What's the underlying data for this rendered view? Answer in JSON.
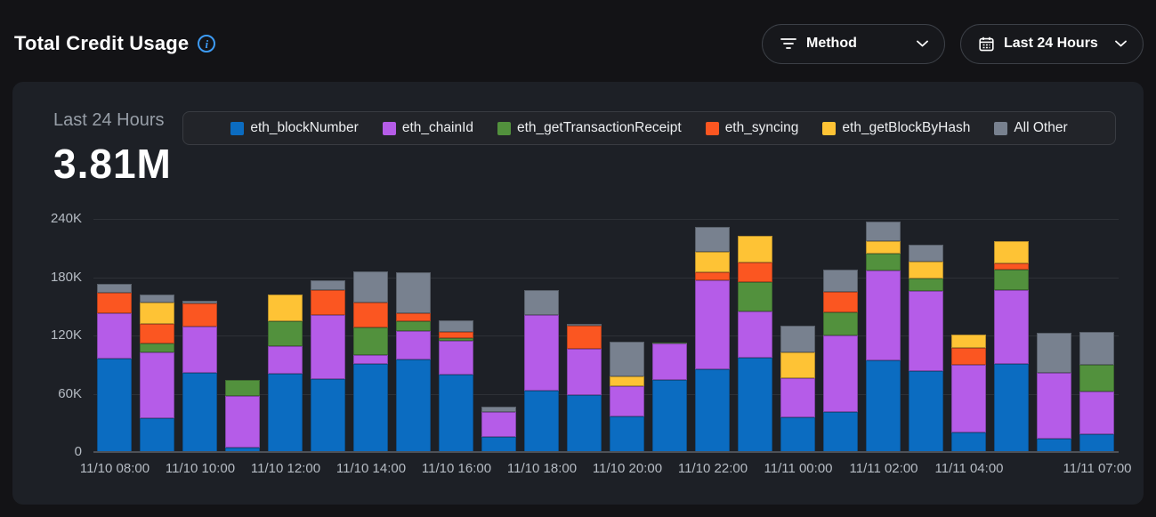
{
  "page": {
    "title": "Total Credit Usage"
  },
  "toolbar": {
    "method_filter_label": "Method",
    "time_range_label": "Last 24 Hours"
  },
  "panel": {
    "summary_label": "Last 24 Hours",
    "summary_value": "3.81M"
  },
  "icons": {
    "info": "info-icon",
    "filter": "filter-icon",
    "calendar": "calendar-icon",
    "chevron": "chevron-down-icon"
  },
  "colors": {
    "page_bg": "#131316",
    "card_bg": "#1d2026",
    "legend_bg": "#222429",
    "accent_blue": "#3d9bf5",
    "axis_text": "#b5bbc3",
    "muted_text": "#979ea7"
  },
  "chart_data": {
    "type": "bar",
    "stacked": true,
    "title": "Total Credit Usage",
    "unit": "thousands of credits",
    "ylim": [
      0,
      240
    ],
    "grid": true,
    "legend_position": "top",
    "yticks": [
      {
        "value": 0,
        "label": "0"
      },
      {
        "value": 60,
        "label": "60K"
      },
      {
        "value": 120,
        "label": "120K"
      },
      {
        "value": 180,
        "label": "180K"
      },
      {
        "value": 240,
        "label": "240K"
      }
    ],
    "categories": [
      "11/10 08:00",
      "11/10 09:00",
      "11/10 10:00",
      "11/10 11:00",
      "11/10 12:00",
      "11/10 13:00",
      "11/10 14:00",
      "11/10 15:00",
      "11/10 16:00",
      "11/10 17:00",
      "11/10 18:00",
      "11/10 19:00",
      "11/10 20:00",
      "11/10 21:00",
      "11/10 22:00",
      "11/10 23:00",
      "11/11 00:00",
      "11/11 01:00",
      "11/11 02:00",
      "11/11 03:00",
      "11/11 04:00",
      "11/11 05:00",
      "11/11 06:00",
      "11/11 07:00"
    ],
    "x_tick_labels": [
      {
        "index": 0,
        "label": "11/10 08:00"
      },
      {
        "index": 2,
        "label": "11/10 10:00"
      },
      {
        "index": 4,
        "label": "11/10 12:00"
      },
      {
        "index": 6,
        "label": "11/10 14:00"
      },
      {
        "index": 8,
        "label": "11/10 16:00"
      },
      {
        "index": 10,
        "label": "11/10 18:00"
      },
      {
        "index": 12,
        "label": "11/10 20:00"
      },
      {
        "index": 14,
        "label": "11/10 22:00"
      },
      {
        "index": 16,
        "label": "11/11 00:00"
      },
      {
        "index": 18,
        "label": "11/11 02:00"
      },
      {
        "index": 20,
        "label": "11/11 04:00"
      },
      {
        "index": 23,
        "label": "11/11 07:00"
      }
    ],
    "series": [
      {
        "name": "eth_blockNumber",
        "color": "#0b6cc1",
        "values": [
          96,
          35,
          82,
          5,
          81,
          75,
          91,
          95,
          80,
          16,
          63,
          59,
          37,
          74,
          85,
          97,
          36,
          41,
          94,
          83,
          20,
          91,
          14,
          18
        ]
      },
      {
        "name": "eth_chainId",
        "color": "#b55ce8",
        "values": [
          47,
          68,
          47,
          53,
          28,
          66,
          9,
          30,
          35,
          25,
          78,
          47,
          31,
          38,
          92,
          48,
          40,
          79,
          93,
          83,
          70,
          76,
          68,
          44
        ]
      },
      {
        "name": "eth_getTransactionReceipt",
        "color": "#52913d",
        "values": [
          0,
          9,
          0,
          16,
          26,
          0,
          28,
          10,
          2,
          0,
          0,
          0,
          0,
          1,
          0,
          30,
          0,
          24,
          17,
          13,
          0,
          21,
          0,
          28
        ]
      },
      {
        "name": "eth_syncing",
        "color": "#fb5621",
        "values": [
          21,
          20,
          24,
          0,
          0,
          26,
          26,
          8,
          7,
          0,
          0,
          24,
          0,
          0,
          8,
          20,
          0,
          21,
          0,
          0,
          17,
          6,
          0,
          0
        ]
      },
      {
        "name": "eth_getBlockByHash",
        "color": "#fec335",
        "values": [
          0,
          22,
          0,
          0,
          27,
          0,
          0,
          0,
          0,
          0,
          0,
          0,
          10,
          0,
          21,
          28,
          27,
          0,
          13,
          17,
          14,
          23,
          0,
          0
        ]
      },
      {
        "name": "All Other",
        "color": "#78818f",
        "values": [
          9,
          8,
          3,
          0,
          0,
          10,
          32,
          42,
          12,
          6,
          26,
          2,
          36,
          0,
          26,
          0,
          27,
          23,
          20,
          17,
          0,
          0,
          41,
          34
        ]
      }
    ]
  }
}
